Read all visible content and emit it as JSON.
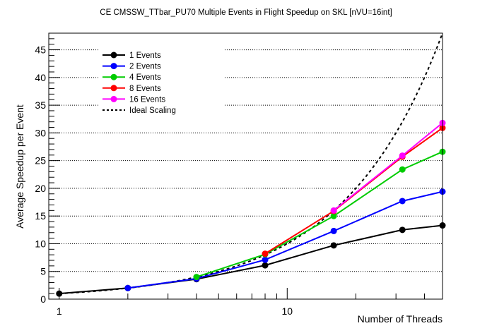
{
  "chart_data": {
    "type": "line",
    "title": "CE CMSSW_TTbar_PU70 Multiple Events in Flight Speedup on SKL [nVU=16int]",
    "xlabel": "Number of Threads",
    "ylabel": "Average Speedup per Event",
    "xscale": "log",
    "xlim": [
      0.9,
      48
    ],
    "ylim": [
      0,
      48
    ],
    "x_tick_labels": [
      "1",
      "10"
    ],
    "y_tick_labels": [
      "0",
      "5",
      "10",
      "15",
      "20",
      "25",
      "30",
      "35",
      "40",
      "45"
    ],
    "y_ticks": [
      0,
      5,
      10,
      15,
      20,
      25,
      30,
      35,
      40,
      45
    ],
    "x_major_ticks": [
      1,
      10
    ],
    "x_minor_ticks": [
      2,
      3,
      4,
      5,
      6,
      7,
      8,
      9,
      20,
      30,
      40
    ],
    "grid": "horizontal-dotted",
    "legend_position": "top-left",
    "series": [
      {
        "name": "1 Events",
        "color": "#000000",
        "x": [
          1,
          2,
          4,
          8,
          16,
          32,
          48
        ],
        "values": [
          1.0,
          2.0,
          3.6,
          6.1,
          9.7,
          12.5,
          13.3
        ]
      },
      {
        "name": "2 Events",
        "color": "#0000ff",
        "x": [
          2,
          4,
          8,
          16,
          32,
          48
        ],
        "values": [
          2.0,
          3.7,
          7.1,
          12.3,
          17.7,
          19.4
        ]
      },
      {
        "name": "4 Events",
        "color": "#00cc00",
        "x": [
          4,
          8,
          16,
          32,
          48
        ],
        "values": [
          4.0,
          8.1,
          15.0,
          23.4,
          26.6
        ]
      },
      {
        "name": "8 Events",
        "color": "#ff0000",
        "x": [
          8,
          16,
          32,
          48
        ],
        "values": [
          8.2,
          15.9,
          25.7,
          30.9
        ]
      },
      {
        "name": "16 Events",
        "color": "#ff00ff",
        "x": [
          16,
          32,
          48
        ],
        "values": [
          16.0,
          25.9,
          31.8
        ]
      }
    ],
    "ideal": {
      "name": "Ideal Scaling",
      "color": "#000000",
      "x": [
        1,
        48
      ],
      "values": [
        1,
        48
      ]
    }
  }
}
